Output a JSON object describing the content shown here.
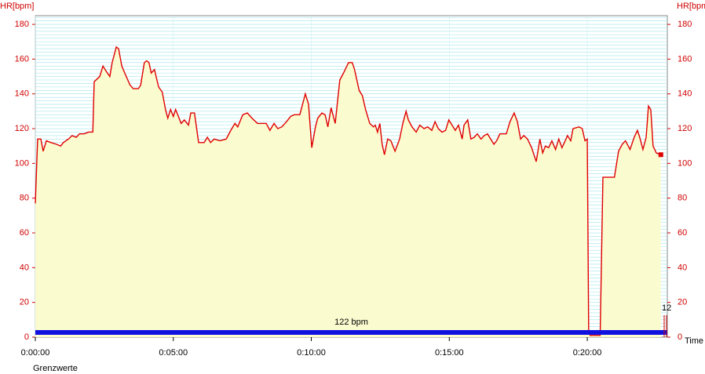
{
  "chart_data": {
    "type": "area",
    "y_label": "HR[bpm]",
    "y2_label": "HR[bpm]",
    "x_label": "Time",
    "legend_note": "Grenzwerte",
    "average": {
      "value": 122,
      "label": "122 bpm"
    },
    "lap_marker": "12",
    "xlim": [
      0,
      1374
    ],
    "xticks": [
      {
        "value": 0,
        "label": "0:00:00"
      },
      {
        "value": 300,
        "label": "0:05:00"
      },
      {
        "value": 600,
        "label": "0:10:00"
      },
      {
        "value": 900,
        "label": "0:15:00"
      },
      {
        "value": 1200,
        "label": "0:20:00"
      }
    ],
    "ylim": [
      0,
      185
    ],
    "yticks": [
      0,
      20,
      40,
      60,
      80,
      100,
      120,
      140,
      160,
      180
    ],
    "grid": true,
    "x": [
      0,
      5,
      12,
      17,
      24,
      34,
      46,
      55,
      61,
      72,
      80,
      89,
      96,
      106,
      116,
      125,
      128,
      140,
      147,
      154,
      162,
      167,
      176,
      181,
      188,
      196,
      206,
      213,
      224,
      229,
      237,
      242,
      247,
      252,
      259,
      268,
      276,
      283,
      288,
      294,
      300,
      305,
      311,
      317,
      324,
      333,
      338,
      346,
      355,
      367,
      374,
      381,
      389,
      401,
      415,
      425,
      434,
      440,
      451,
      461,
      471,
      483,
      491,
      502,
      510,
      519,
      527,
      536,
      546,
      555,
      563,
      575,
      582,
      587,
      594,
      601,
      609,
      614,
      623,
      630,
      636,
      643,
      652,
      662,
      670,
      681,
      689,
      694,
      704,
      711,
      718,
      727,
      735,
      739,
      744,
      749,
      754,
      759,
      766,
      773,
      782,
      792,
      799,
      806,
      811,
      819,
      828,
      836,
      845,
      853,
      862,
      869,
      876,
      884,
      892,
      899,
      906,
      913,
      920,
      928,
      932,
      940,
      947,
      954,
      961,
      969,
      976,
      983,
      990,
      997,
      1003,
      1010,
      1024,
      1032,
      1041,
      1048,
      1055,
      1062,
      1070,
      1079,
      1089,
      1097,
      1103,
      1109,
      1116,
      1123,
      1131,
      1138,
      1145,
      1152,
      1157,
      1164,
      1169,
      1182,
      1189,
      1195,
      1200,
      1203,
      1206,
      1228,
      1234,
      1259,
      1268,
      1276,
      1283,
      1293,
      1302,
      1309,
      1314,
      1321,
      1328,
      1333,
      1338,
      1343,
      1350,
      1360
    ],
    "series": [
      {
        "name": "HR",
        "color": "#e00000",
        "fill": "#fbfbd0",
        "values": [
          77,
          114,
          114,
          107,
          113,
          112,
          111,
          110,
          112,
          114,
          116,
          115,
          117,
          117,
          118,
          118,
          147,
          150,
          156,
          153,
          150,
          158,
          167,
          166,
          156,
          151,
          145,
          143,
          143,
          145,
          158,
          159,
          158,
          152,
          154,
          144,
          141,
          131,
          126,
          131,
          127,
          131,
          127,
          123,
          125,
          122,
          129,
          129,
          112,
          112,
          115,
          112,
          114,
          113,
          114,
          119,
          123,
          121,
          128,
          129,
          126,
          123,
          123,
          123,
          119,
          123,
          120,
          121,
          124,
          127,
          128,
          128,
          135,
          140,
          134,
          109,
          121,
          126,
          129,
          128,
          121,
          132,
          123,
          148,
          152,
          158,
          158,
          154,
          142,
          139,
          131,
          123,
          121,
          122,
          118,
          123,
          111,
          105,
          114,
          113,
          107,
          114,
          123,
          130,
          125,
          121,
          118,
          122,
          120,
          121,
          119,
          124,
          120,
          118,
          119,
          125,
          122,
          119,
          122,
          114,
          122,
          125,
          114,
          115,
          117,
          114,
          116,
          117,
          114,
          111,
          113,
          117,
          117,
          124,
          129,
          124,
          114,
          116,
          114,
          109,
          101,
          114,
          106,
          110,
          109,
          113,
          108,
          114,
          109,
          113,
          116,
          113,
          120,
          121,
          120,
          113,
          114,
          4,
          1,
          1,
          92,
          92,
          107,
          111,
          113,
          108,
          115,
          119,
          115,
          108,
          115,
          133,
          131,
          110,
          106,
          105
        ]
      }
    ]
  }
}
